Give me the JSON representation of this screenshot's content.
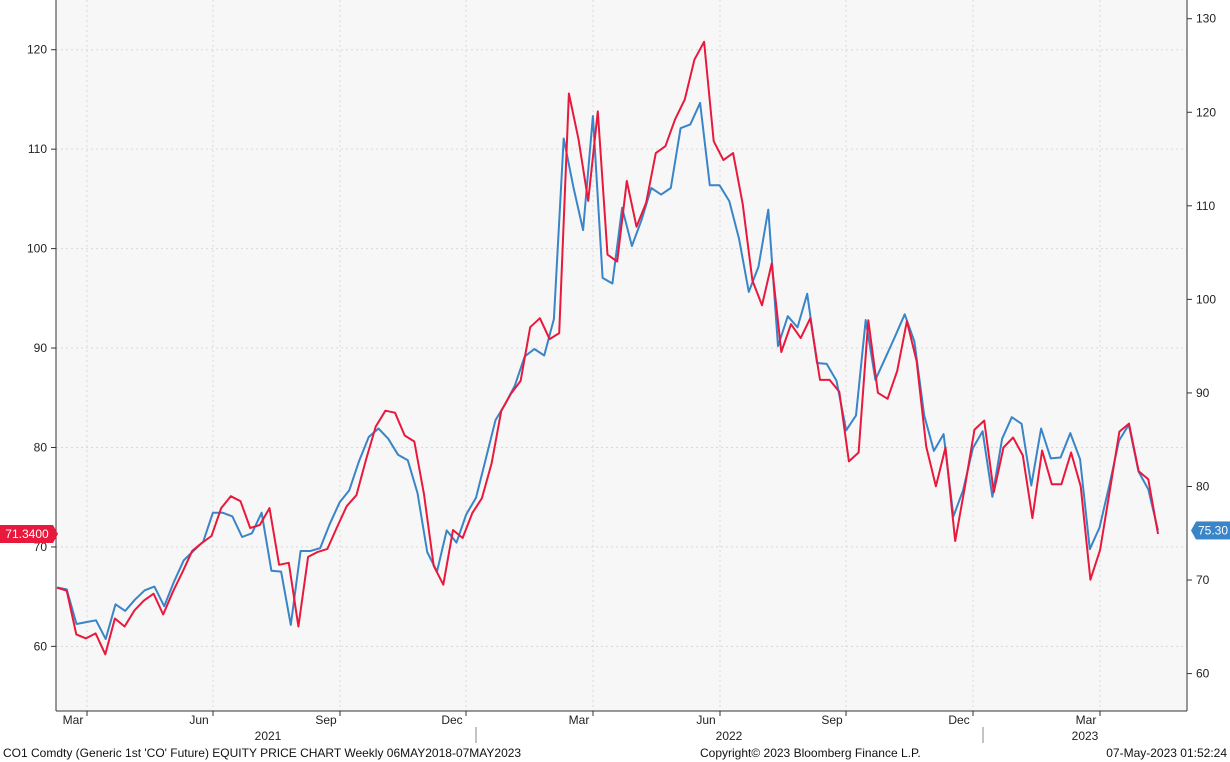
{
  "footer": {
    "left": "CO1 Comdty (Generic 1st 'CO' Future) EQUITY PRICE CHART  Weekly 06MAY2018-07MAY2023",
    "center": "Copyright© 2023 Bloomberg Finance L.P.",
    "right": "07-May-2023 01:52:24"
  },
  "chart_data": {
    "type": "line",
    "grid": true,
    "legend": "none",
    "colors": {
      "red_series": "#e8193c",
      "blue_series": "#3a84c8",
      "grid": "#d6d6d6",
      "axis": "#333333"
    },
    "x_month_labels": [
      "Mar",
      "Jun",
      "Sep",
      "Dec",
      "Mar",
      "Jun",
      "Sep",
      "Dec",
      "Mar"
    ],
    "x_year_labels": [
      "2021",
      "2022",
      "2023"
    ],
    "left_axis": {
      "ticks": [
        60,
        70,
        80,
        90,
        100,
        110,
        120
      ],
      "range": [
        53.5,
        125
      ]
    },
    "right_axis": {
      "ticks": [
        60,
        70,
        80,
        90,
        100,
        110,
        120,
        130
      ],
      "range": [
        56,
        132
      ]
    },
    "last_value_badges": {
      "left": "71.3400",
      "right": "75.30"
    },
    "series": [
      {
        "axis": "left",
        "color": "#e8193c",
        "values": [
          65.9,
          65.6,
          61.2,
          60.8,
          61.3,
          59.2,
          62.8,
          62.0,
          63.6,
          64.6,
          65.3,
          63.2,
          65.5,
          67.5,
          69.6,
          70.4,
          71.1,
          73.9,
          75.1,
          74.6,
          71.9,
          72.2,
          73.9,
          68.2,
          68.4,
          62.0,
          69.0,
          69.5,
          69.8,
          72.0,
          74.1,
          75.2,
          78.8,
          82.1,
          83.7,
          83.5,
          81.2,
          80.6,
          75.3,
          68.1,
          66.2,
          71.7,
          70.9,
          73.4,
          74.9,
          78.4,
          83.7,
          85.4,
          86.7,
          92.1,
          93.0,
          90.9,
          91.5,
          115.6,
          111.0,
          104.8,
          113.8,
          99.4,
          98.7,
          106.8,
          102.2,
          104.6,
          109.6,
          110.3,
          113.0,
          115.0,
          119.0,
          120.8,
          110.8,
          108.9,
          109.6,
          104.5,
          96.8,
          94.3,
          98.5,
          89.6,
          92.4,
          91.0,
          93.0,
          86.8,
          86.8,
          85.6,
          78.6,
          79.5,
          92.8,
          85.5,
          84.9,
          87.7,
          92.7,
          88.7,
          80.1,
          76.1,
          80.0,
          70.6,
          76.0,
          81.8,
          82.7,
          75.5,
          80.0,
          81.0,
          79.2,
          72.9,
          79.7,
          76.3,
          76.3,
          79.5,
          76.1,
          66.7,
          69.7,
          75.6,
          81.6,
          82.4,
          77.6,
          76.8,
          71.3
        ]
      },
      {
        "axis": "right",
        "color": "#3a84c8",
        "values": [
          69.2,
          69.0,
          65.3,
          65.5,
          65.7,
          63.7,
          67.4,
          66.7,
          67.9,
          68.9,
          69.3,
          67.2,
          69.8,
          72.1,
          73.1,
          74.1,
          77.2,
          77.2,
          76.8,
          74.6,
          75.0,
          77.2,
          71.0,
          70.9,
          65.2,
          73.1,
          73.1,
          73.4,
          76.0,
          78.3,
          79.6,
          82.7,
          85.3,
          86.2,
          85.1,
          83.4,
          82.8,
          79.3,
          73.0,
          70.9,
          75.3,
          74.0,
          77.0,
          78.8,
          82.9,
          87.1,
          88.8,
          90.8,
          93.9,
          94.7,
          94.0,
          97.9,
          117.2,
          112.0,
          107.4,
          119.6,
          102.3,
          101.7,
          109.8,
          105.7,
          108.5,
          111.9,
          111.2,
          111.9,
          118.3,
          118.7,
          121.0,
          112.2,
          112.2,
          110.5,
          106.5,
          100.8,
          103.5,
          109.6,
          95.0,
          98.2,
          97.0,
          100.6,
          93.2,
          93.1,
          91.3,
          86.0,
          87.6,
          97.8,
          91.4,
          93.7,
          96.0,
          98.4,
          95.5,
          87.6,
          83.8,
          85.6,
          76.8,
          79.6,
          84.1,
          85.9,
          78.9,
          85.1,
          87.4,
          86.7,
          80.1,
          86.2,
          83.0,
          83.1,
          85.7,
          82.9,
          73.3,
          75.6,
          80.1,
          84.9,
          86.6,
          81.6,
          79.7,
          75.3
        ]
      }
    ]
  }
}
